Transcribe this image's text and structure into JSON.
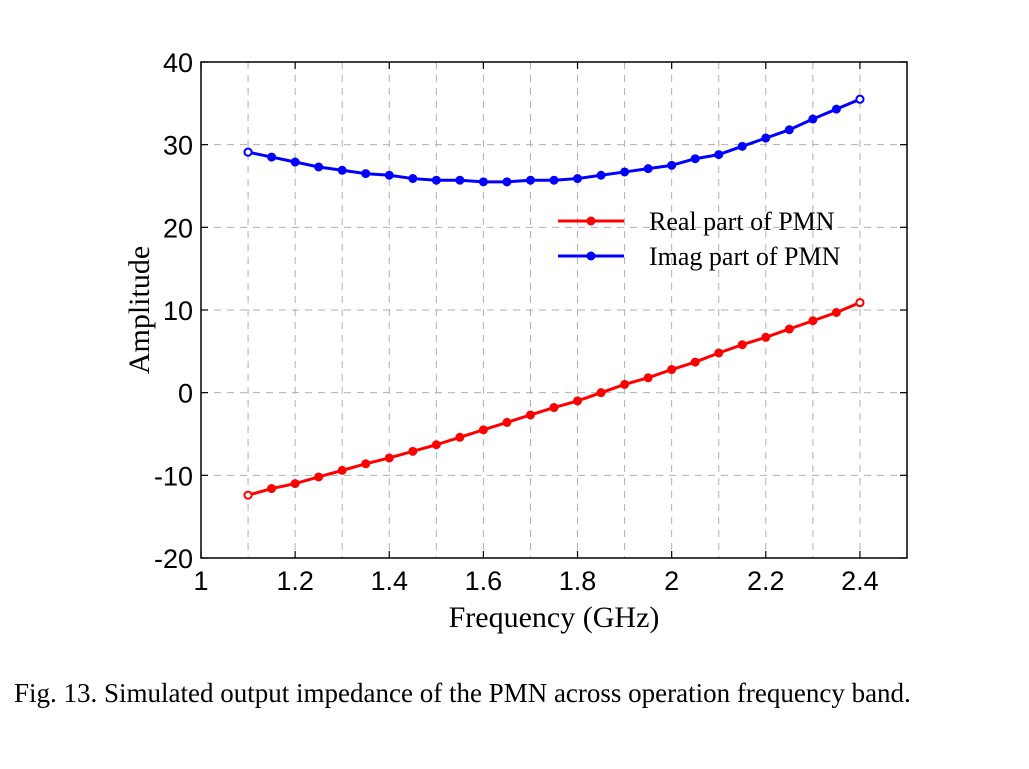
{
  "caption": "Fig. 13.   Simulated output impedance of the PMN across operation frequency band.",
  "chart_data": {
    "type": "line",
    "title": "",
    "xlabel": "Frequency (GHz)",
    "ylabel": "Amplitude",
    "xlim": [
      1,
      2.5
    ],
    "ylim": [
      -20,
      40
    ],
    "xticks": [
      1,
      1.2,
      1.4,
      1.6,
      1.8,
      2,
      2.2,
      2.4
    ],
    "xtick_labels": [
      "1",
      "1.2",
      "1.4",
      "1.6",
      "1.8",
      "2",
      "2.2",
      "2.4"
    ],
    "yticks": [
      -20,
      -10,
      0,
      10,
      20,
      30,
      40
    ],
    "ytick_labels": [
      "-20",
      "-10",
      "0",
      "10",
      "20",
      "30",
      "40"
    ],
    "grid": true,
    "legend_position": "center-right",
    "x": [
      1.1,
      1.15,
      1.2,
      1.25,
      1.3,
      1.35,
      1.4,
      1.45,
      1.5,
      1.55,
      1.6,
      1.65,
      1.7,
      1.75,
      1.8,
      1.85,
      1.9,
      1.95,
      2.0,
      2.05,
      2.1,
      2.15,
      2.2,
      2.25,
      2.3,
      2.35,
      2.4
    ],
    "series": [
      {
        "name": "Real part of PMN",
        "color": "#ff0000",
        "values": [
          -12.4,
          -11.6,
          -11.0,
          -10.2,
          -9.4,
          -8.6,
          -7.9,
          -7.1,
          -6.3,
          -5.4,
          -4.5,
          -3.6,
          -2.7,
          -1.8,
          -1.0,
          0.0,
          1.0,
          1.8,
          2.8,
          3.7,
          4.8,
          5.8,
          6.7,
          7.7,
          8.7,
          9.7,
          10.9
        ]
      },
      {
        "name": "Imag part of PMN",
        "color": "#0000ff",
        "values": [
          29.1,
          28.5,
          27.9,
          27.3,
          26.9,
          26.5,
          26.3,
          25.9,
          25.7,
          25.7,
          25.5,
          25.5,
          25.7,
          25.7,
          25.9,
          26.3,
          26.7,
          27.1,
          27.5,
          28.3,
          28.8,
          29.8,
          30.8,
          31.8,
          33.1,
          34.3,
          35.5
        ]
      }
    ]
  }
}
